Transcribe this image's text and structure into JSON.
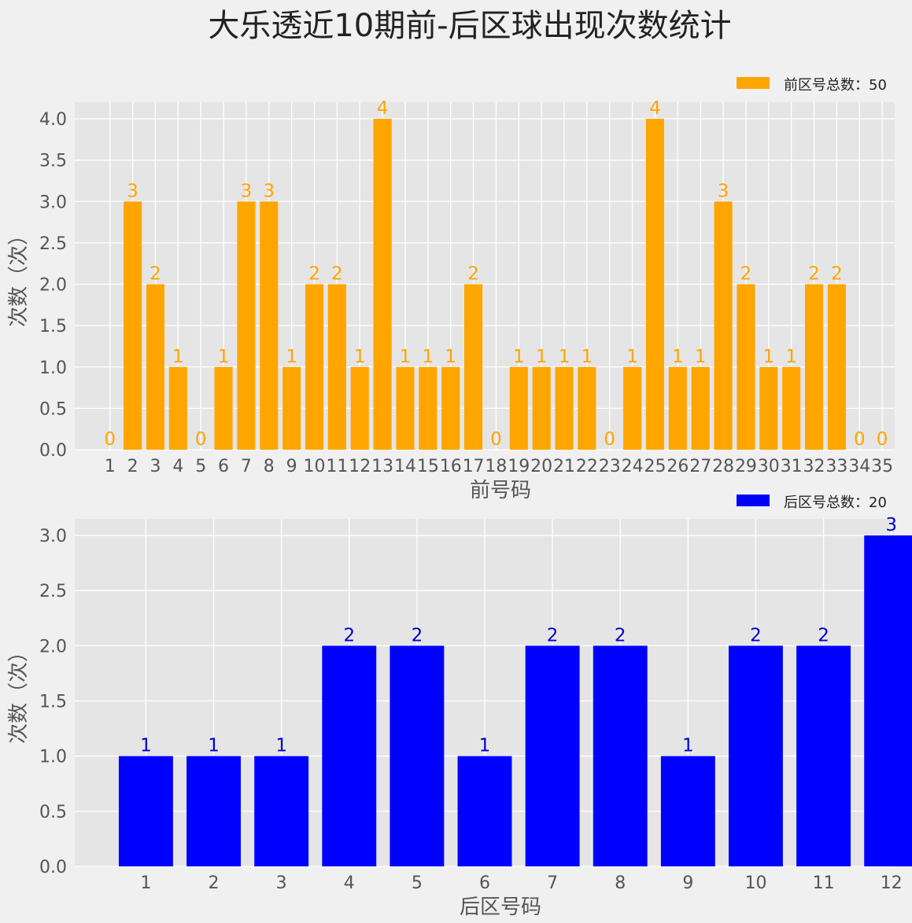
{
  "title": "大乐透近10期前-后区球出现次数统计",
  "chart_data": [
    {
      "type": "bar",
      "xlabel": "前号码",
      "ylabel": "次数（次）",
      "ylim": [
        0,
        4.2
      ],
      "yticks": [
        "0.0",
        "0.5",
        "1.0",
        "1.5",
        "2.0",
        "2.5",
        "3.0",
        "3.5",
        "4.0"
      ],
      "color": "#ffa500",
      "label_color": "#ffa500",
      "grid": true,
      "legend": {
        "label": "前区号总数：50",
        "position": "top-right"
      },
      "categories": [
        "1",
        "2",
        "3",
        "4",
        "5",
        "6",
        "7",
        "8",
        "9",
        "10",
        "11",
        "12",
        "13",
        "14",
        "15",
        "16",
        "17",
        "18",
        "19",
        "20",
        "21",
        "22",
        "23",
        "24",
        "25",
        "26",
        "27",
        "28",
        "29",
        "30",
        "31",
        "32",
        "33",
        "34",
        "35"
      ],
      "values": [
        0,
        3,
        2,
        1,
        0,
        1,
        3,
        3,
        1,
        2,
        2,
        1,
        4,
        1,
        1,
        1,
        2,
        0,
        1,
        1,
        1,
        1,
        0,
        1,
        4,
        1,
        1,
        3,
        2,
        1,
        1,
        2,
        2,
        0,
        0
      ]
    },
    {
      "type": "bar",
      "xlabel": "后区号码",
      "ylabel": "次数（次）",
      "ylim": [
        0,
        3.15
      ],
      "yticks": [
        "0.0",
        "0.5",
        "1.0",
        "1.5",
        "2.0",
        "2.5",
        "3.0"
      ],
      "color": "#0000ff",
      "label_color": "#0000cc",
      "grid": true,
      "legend": {
        "label": "后区号总数：20",
        "position": "top-right"
      },
      "categories": [
        "1",
        "2",
        "3",
        "4",
        "5",
        "6",
        "7",
        "8",
        "9",
        "10",
        "11",
        "12"
      ],
      "values": [
        1,
        1,
        1,
        2,
        2,
        1,
        2,
        2,
        1,
        2,
        2,
        3
      ]
    }
  ]
}
